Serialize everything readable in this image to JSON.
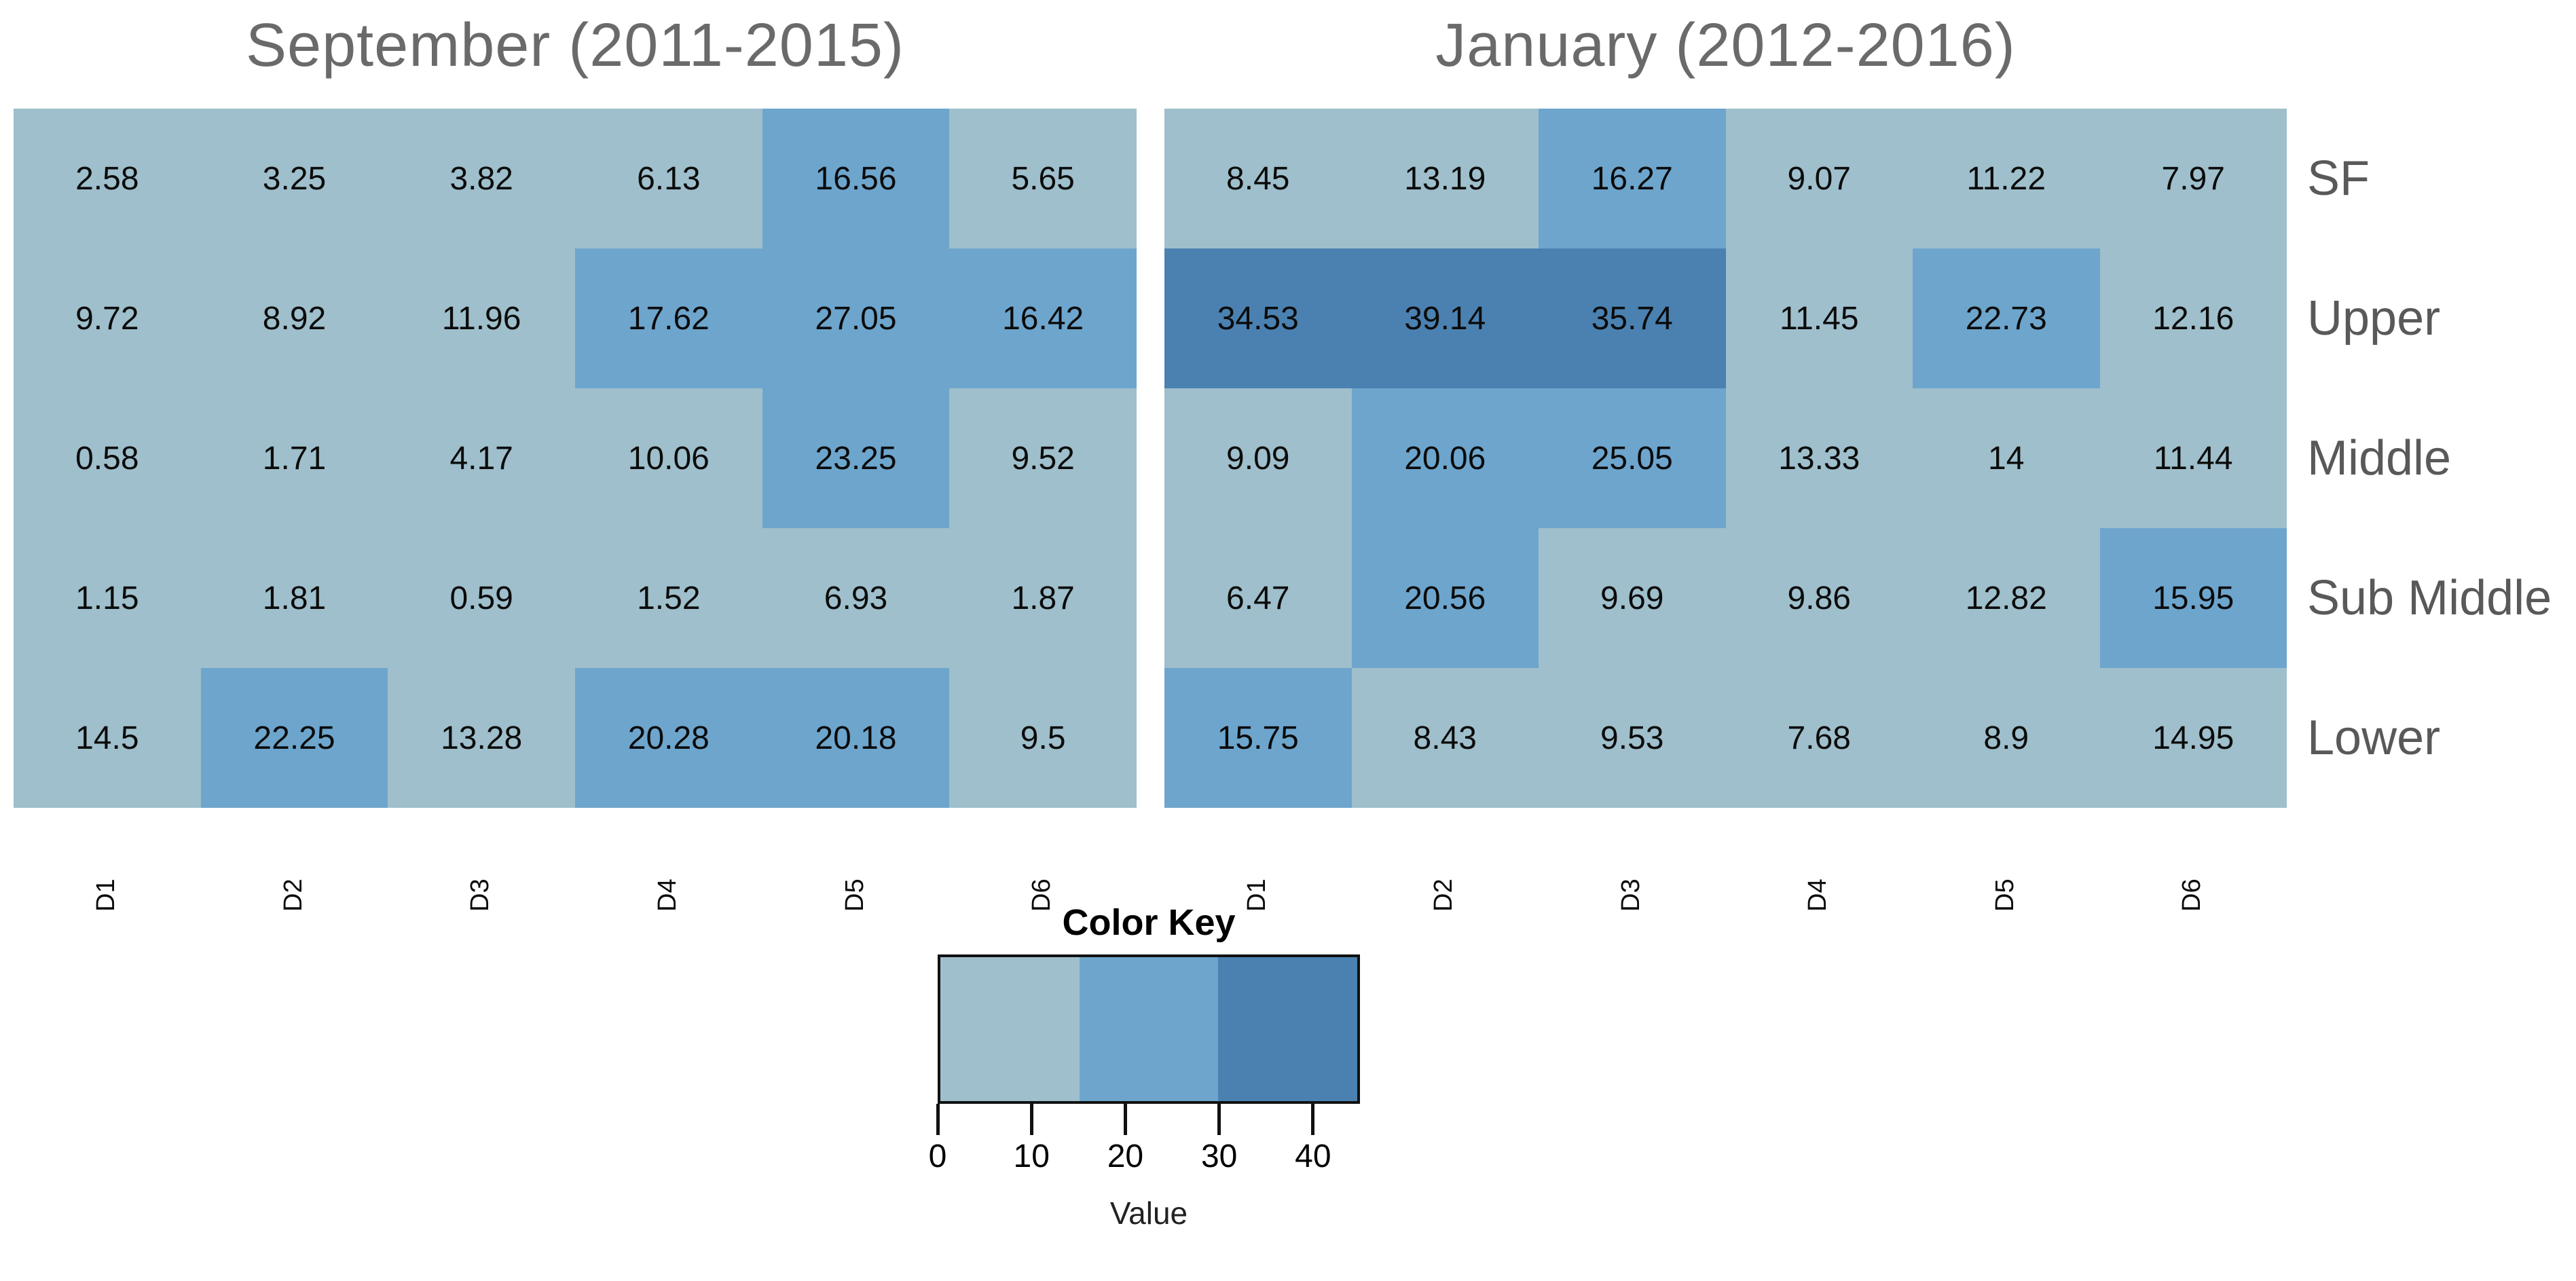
{
  "figure": {
    "background": "#ffffff"
  },
  "chart_data": [
    {
      "type": "heatmap",
      "title": "September (2011-2015)",
      "columns": [
        "D1",
        "D2",
        "D3",
        "D4",
        "D5",
        "D6"
      ],
      "rows": [
        "SF",
        "Upper",
        "Middle",
        "Sub Middle",
        "Lower"
      ],
      "values": [
        [
          "2.58",
          "3.25",
          "3.82",
          "6.13",
          "16.56",
          "5.65"
        ],
        [
          "9.72",
          "8.92",
          "11.96",
          "17.62",
          "27.05",
          "16.42"
        ],
        [
          "0.58",
          "1.71",
          "4.17",
          "10.06",
          "23.25",
          "9.52"
        ],
        [
          "1.15",
          "1.81",
          "0.59",
          "1.52",
          "6.93",
          "1.87"
        ],
        [
          "14.5",
          "22.25",
          "13.28",
          "20.28",
          "20.18",
          "9.5"
        ]
      ]
    },
    {
      "type": "heatmap",
      "title": "January (2012-2016)",
      "columns": [
        "D1",
        "D2",
        "D3",
        "D4",
        "D5",
        "D6"
      ],
      "rows": [
        "SF",
        "Upper",
        "Middle",
        "Sub Middle",
        "Lower"
      ],
      "values": [
        [
          "8.45",
          "13.19",
          "16.27",
          "9.07",
          "11.22",
          "7.97"
        ],
        [
          "34.53",
          "39.14",
          "35.74",
          "11.45",
          "22.73",
          "12.16"
        ],
        [
          "9.09",
          "20.06",
          "25.05",
          "13.33",
          "14",
          "11.44"
        ],
        [
          "6.47",
          "20.56",
          "9.69",
          "9.86",
          "12.82",
          "15.95"
        ],
        [
          "15.75",
          "8.43",
          "9.53",
          "7.68",
          "8.9",
          "14.95"
        ]
      ]
    }
  ],
  "color_key": {
    "title": "Color Key",
    "xlabel": "Value",
    "ticks": [
      0,
      10,
      20,
      30,
      40
    ],
    "domain": [
      0,
      45
    ],
    "breaks": [
      15,
      30
    ],
    "colors": [
      "#9EBFCB",
      "#6DA5CD",
      "#4A81B1"
    ],
    "legend_position": "bottom-center"
  },
  "text_colors": {
    "panel_title": "#6a6a6a",
    "row_label": "#595959",
    "cell_value": "#0b0b0b"
  }
}
